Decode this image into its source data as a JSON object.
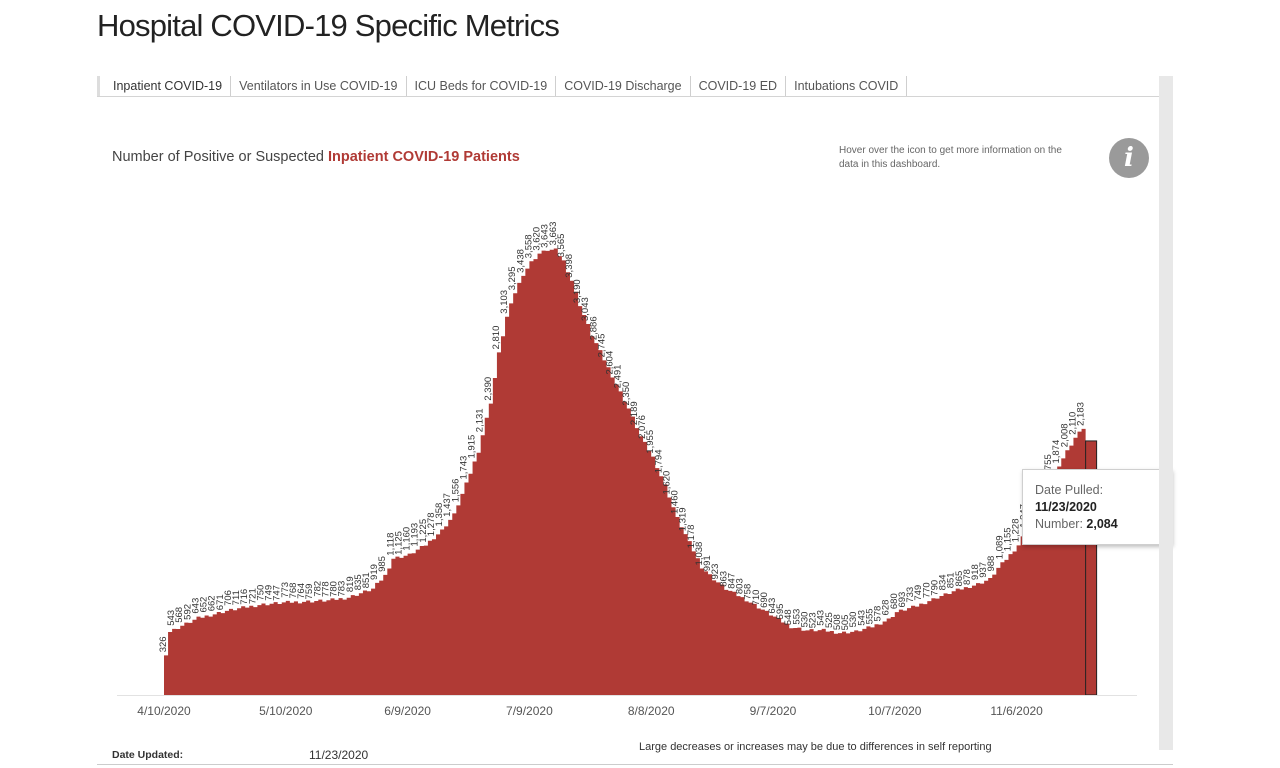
{
  "page": {
    "title": "Hospital COVID-19 Specific Metrics"
  },
  "tabs": [
    {
      "label": "Inpatient COVID-19",
      "active": true
    },
    {
      "label": "Ventilators in Use COVID-19",
      "active": false
    },
    {
      "label": "ICU Beds for COVID-19",
      "active": false
    },
    {
      "label": "COVID-19 Discharge",
      "active": false
    },
    {
      "label": "COVID-19 ED",
      "active": false
    },
    {
      "label": "Intubations COVID",
      "active": false
    }
  ],
  "heading": {
    "prefix": "Number of Positive or Suspected ",
    "highlight": "Inpatient COVID-19 Patients"
  },
  "info": {
    "text": "Hover over the icon to get more information on the data in this dashboard.",
    "icon": "info-icon"
  },
  "tooltip": {
    "date_label": "Date Pulled:",
    "date_value": "11/23/2020",
    "number_label": "Number:",
    "number_value": "2,084"
  },
  "footer": {
    "updated_label": "Date Updated:",
    "updated_value": "11/23/2020",
    "note": "Large decreases or increases may be due to differences in self reporting"
  },
  "colors": {
    "area": "#b03a35",
    "accent": "#b03a35"
  },
  "chart_data": {
    "type": "area",
    "x_start": "4/10/2020",
    "x_end": "11/23/2020",
    "x_ticks": [
      "4/10/2020",
      "5/10/2020",
      "6/9/2020",
      "7/9/2020",
      "8/8/2020",
      "9/7/2020",
      "10/7/2020",
      "11/6/2020"
    ],
    "ylim": [
      0,
      3800
    ],
    "grid": false,
    "keyframes": [
      [
        "4/10/2020",
        338
      ],
      [
        "4/11/2020",
        519
      ],
      [
        "4/14/2020",
        568
      ],
      [
        "4/18/2020",
        630
      ],
      [
        "4/25/2020",
        690
      ],
      [
        "5/3/2020",
        740
      ],
      [
        "5/10/2020",
        760
      ],
      [
        "5/20/2020",
        775
      ],
      [
        "5/25/2020",
        800
      ],
      [
        "5/31/2020",
        870
      ],
      [
        "6/3/2020",
        980
      ],
      [
        "6/5/2020",
        1120
      ],
      [
        "6/9/2020",
        1150
      ],
      [
        "6/13/2020",
        1230
      ],
      [
        "6/17/2020",
        1350
      ],
      [
        "6/20/2020",
        1480
      ],
      [
        "6/23/2020",
        1730
      ],
      [
        "6/26/2020",
        2000
      ],
      [
        "6/29/2020",
        2400
      ],
      [
        "7/1/2020",
        2800
      ],
      [
        "7/3/2020",
        3100
      ],
      [
        "7/5/2020",
        3300
      ],
      [
        "7/7/2020",
        3450
      ],
      [
        "7/9/2020",
        3550
      ],
      [
        "7/11/2020",
        3620
      ],
      [
        "7/13/2020",
        3650
      ],
      [
        "7/15/2020",
        3650
      ],
      [
        "7/17/2020",
        3560
      ],
      [
        "7/19/2020",
        3400
      ],
      [
        "7/21/2020",
        3200
      ],
      [
        "7/24/2020",
        2950
      ],
      [
        "7/27/2020",
        2750
      ],
      [
        "7/30/2020",
        2550
      ],
      [
        "8/2/2020",
        2350
      ],
      [
        "8/5/2020",
        2120
      ],
      [
        "8/8/2020",
        1950
      ],
      [
        "8/11/2020",
        1720
      ],
      [
        "8/14/2020",
        1450
      ],
      [
        "8/17/2020",
        1250
      ],
      [
        "8/20/2020",
        1050
      ],
      [
        "8/23/2020",
        950
      ],
      [
        "8/26/2020",
        870
      ],
      [
        "8/31/2020",
        780
      ],
      [
        "9/4/2020",
        700
      ],
      [
        "9/7/2020",
        640
      ],
      [
        "9/11/2020",
        560
      ],
      [
        "9/15/2020",
        530
      ],
      [
        "9/19/2020",
        530
      ],
      [
        "9/23/2020",
        510
      ],
      [
        "9/27/2020",
        520
      ],
      [
        "10/1/2020",
        560
      ],
      [
        "10/5/2020",
        620
      ],
      [
        "10/7/2020",
        680
      ],
      [
        "10/12/2020",
        730
      ],
      [
        "10/17/2020",
        800
      ],
      [
        "10/22/2020",
        860
      ],
      [
        "10/27/2020",
        910
      ],
      [
        "10/30/2020",
        950
      ],
      [
        "11/1/2020",
        1040
      ],
      [
        "11/4/2020",
        1150
      ],
      [
        "11/6/2020",
        1230
      ],
      [
        "11/9/2020",
        1420
      ],
      [
        "11/12/2020",
        1620
      ],
      [
        "11/15/2020",
        1830
      ],
      [
        "11/18/2020",
        2000
      ],
      [
        "11/20/2020",
        2110
      ],
      [
        "11/22/2020",
        2190
      ],
      [
        "11/23/2020",
        2084
      ]
    ],
    "highlighted_point": {
      "date": "11/23/2020",
      "value": 2084
    }
  }
}
